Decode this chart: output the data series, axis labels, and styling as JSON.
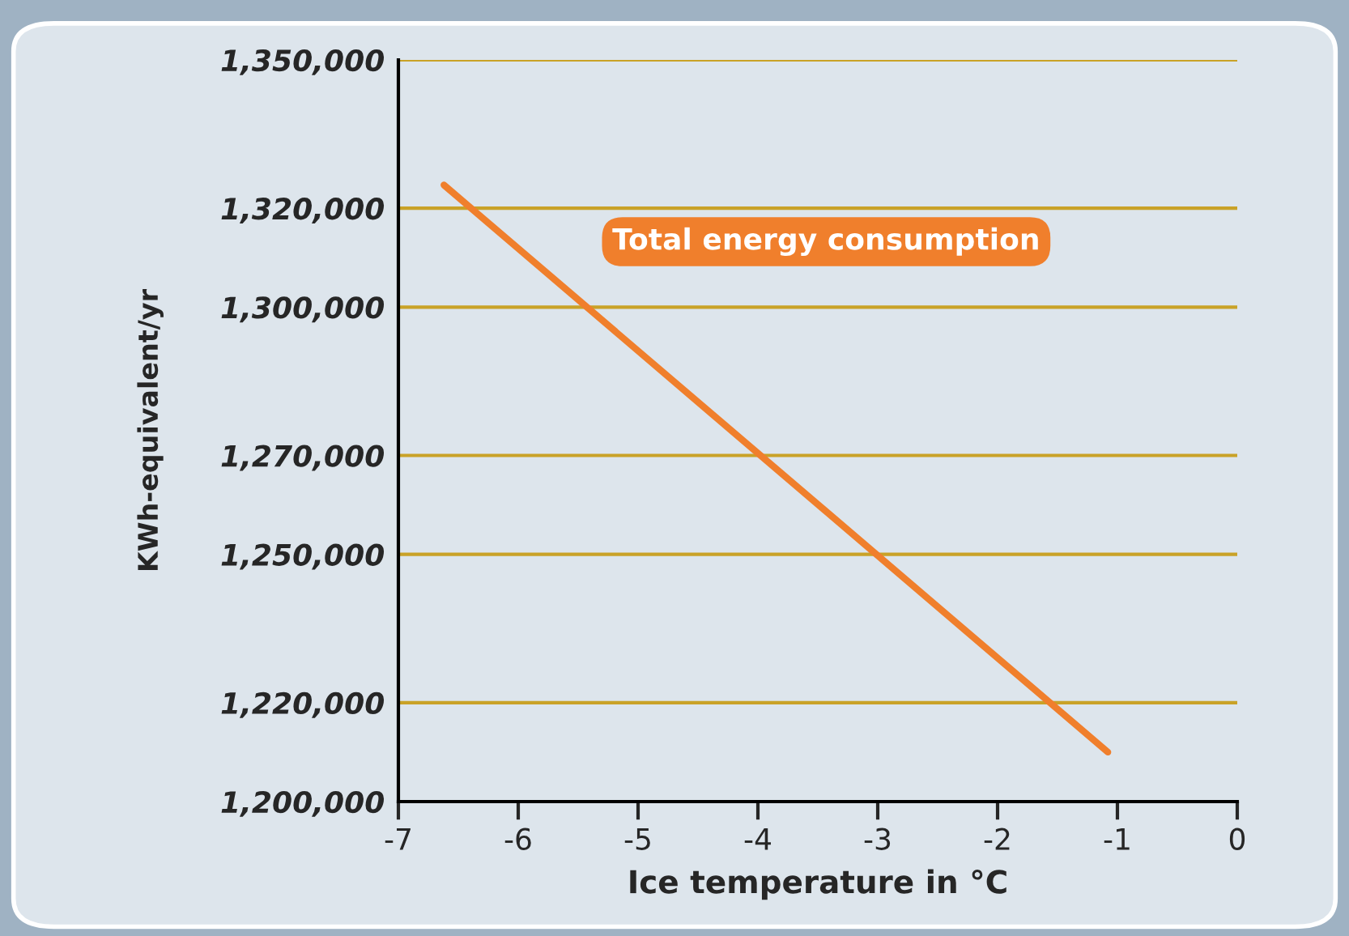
{
  "chart_data": {
    "type": "line",
    "xlabel": "Ice temperature in °C",
    "ylabel": "KWh-equivalent/yr",
    "x": [
      -6.62,
      -1.08
    ],
    "series": [
      {
        "color": "#f07f2c",
        "values": [
          1324700,
          1210000
        ]
      }
    ],
    "xlim": [
      -7,
      0
    ],
    "xticks": [
      -7,
      -6,
      -5,
      -4,
      -3,
      -2,
      -1,
      0
    ],
    "ylim": [
      1200000,
      1350000
    ],
    "yticks": [
      {
        "value": 1200000,
        "label": "1,200,000"
      },
      {
        "value": 1220000,
        "label": "1,220,000"
      },
      {
        "value": 1250000,
        "label": "1,250,000"
      },
      {
        "value": 1270000,
        "label": "1,270,000"
      },
      {
        "value": 1300000,
        "label": "1,300,000"
      },
      {
        "value": 1320000,
        "label": "1,320,000"
      },
      {
        "value": 1350000,
        "label": "1,350,000"
      }
    ],
    "grid": "y",
    "annotations": [
      "Total energy consumption"
    ],
    "marker": "none",
    "line_style": "solid"
  }
}
